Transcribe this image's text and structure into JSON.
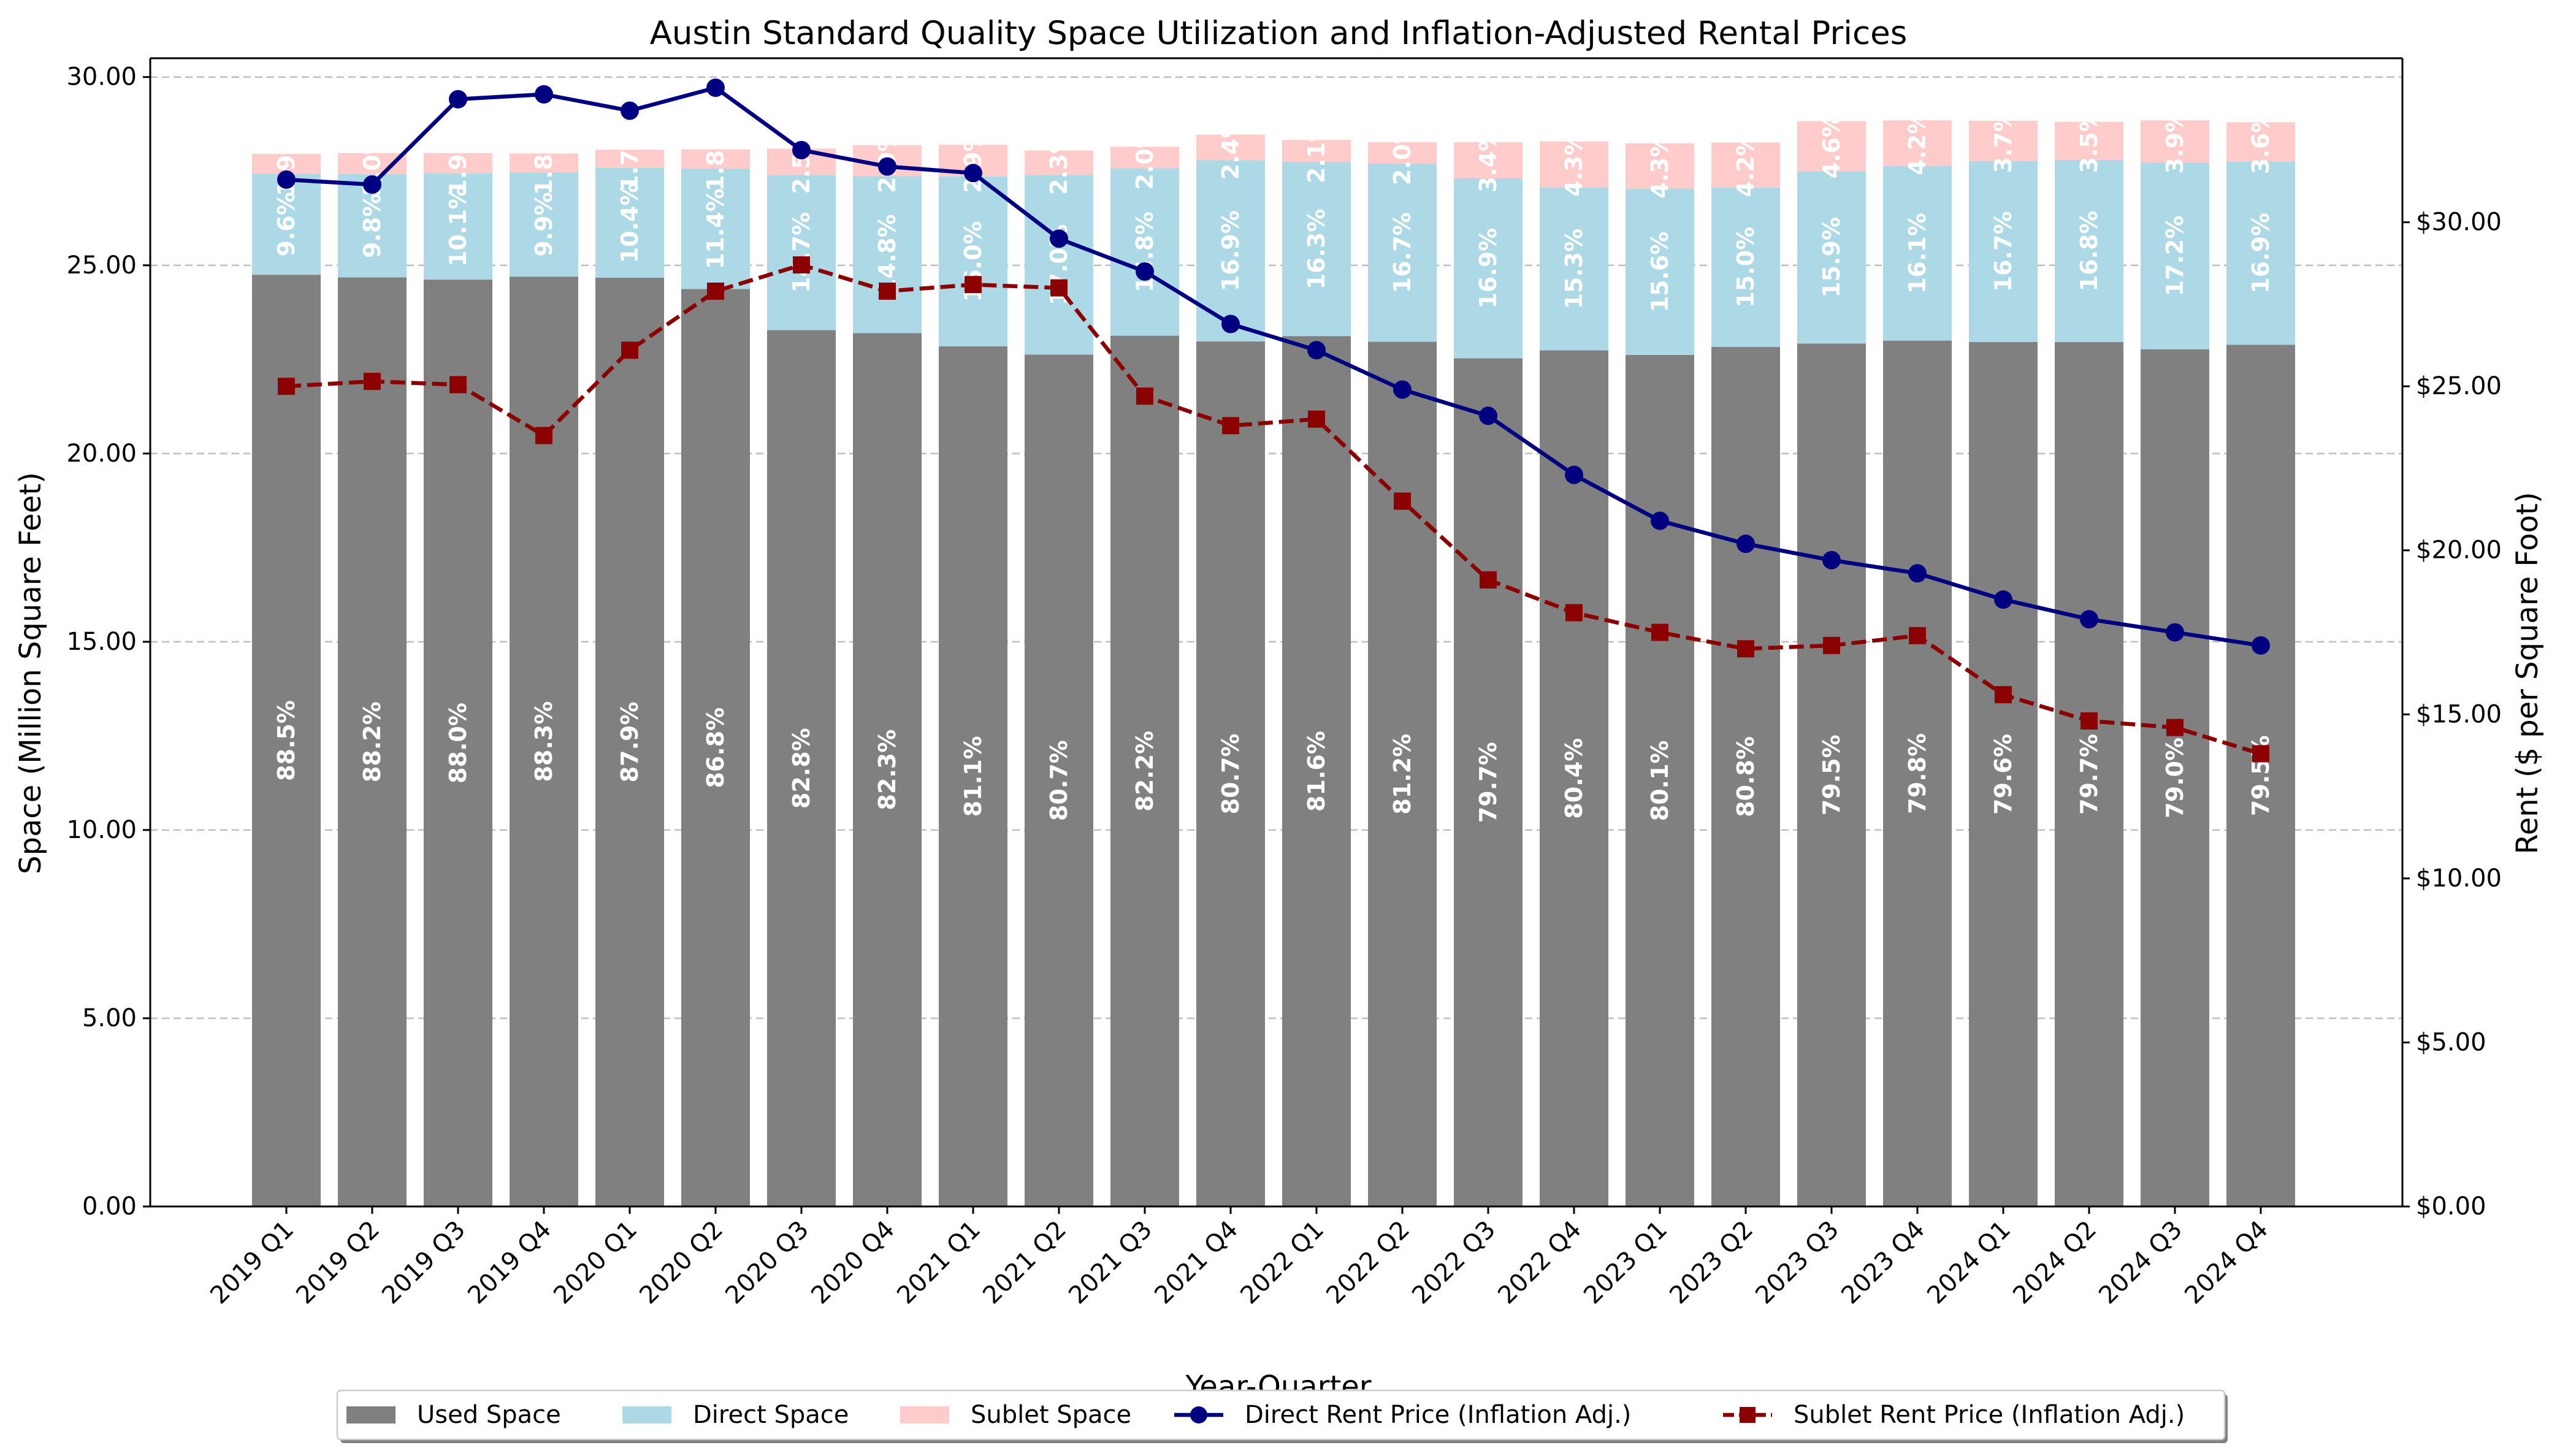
{
  "chart_data": {
    "type": "bar",
    "title": "Austin Standard Quality Space Utilization and Inflation-Adjusted Rental Prices",
    "xlabel": "Year-Quarter",
    "ylabel": "Space (Million Square Feet)",
    "y2label": "Rent ($ per Square Foot)",
    "ylim": [
      0,
      30.5
    ],
    "y2lim": [
      0,
      35.0
    ],
    "yticks": [
      "0.00",
      "5.00",
      "10.00",
      "15.00",
      "20.00",
      "25.00",
      "30.00"
    ],
    "y2ticks": [
      "$0.00",
      "$5.00",
      "$10.00",
      "$15.00",
      "$20.00",
      "$25.00",
      "$30.00"
    ],
    "grid": true,
    "legend_position": "bottom-center",
    "categories": [
      "2019 Q1",
      "2019 Q2",
      "2019 Q3",
      "2019 Q4",
      "2020 Q1",
      "2020 Q2",
      "2020 Q3",
      "2020 Q4",
      "2021 Q1",
      "2021 Q2",
      "2021 Q3",
      "2021 Q4",
      "2022 Q1",
      "2022 Q2",
      "2022 Q3",
      "2022 Q4",
      "2023 Q1",
      "2023 Q2",
      "2023 Q3",
      "2023 Q4",
      "2024 Q1",
      "2024 Q2",
      "2024 Q3",
      "2024 Q4"
    ],
    "series": [
      {
        "name": "Used Space",
        "type": "bar",
        "color": "#808080",
        "values": [
          24.75,
          24.68,
          24.62,
          24.7,
          24.67,
          24.37,
          23.28,
          23.2,
          22.85,
          22.63,
          23.13,
          22.98,
          23.12,
          22.97,
          22.53,
          22.74,
          22.62,
          22.83,
          22.92,
          23.0,
          22.96,
          22.96,
          22.77,
          22.89
        ],
        "labels": [
          "88.5%",
          "88.2%",
          "88.0%",
          "88.3%",
          "87.9%",
          "86.8%",
          "82.8%",
          "82.3%",
          "81.1%",
          "80.7%",
          "82.2%",
          "80.7%",
          "81.6%",
          "81.2%",
          "79.7%",
          "80.4%",
          "80.1%",
          "80.8%",
          "79.5%",
          "79.8%",
          "79.6%",
          "79.7%",
          "79.0%",
          "79.5%"
        ]
      },
      {
        "name": "Direct Space",
        "type": "bar",
        "color": "#add8e6",
        "values": [
          2.68,
          2.74,
          2.83,
          2.77,
          2.92,
          3.2,
          4.12,
          4.17,
          4.51,
          4.77,
          4.45,
          4.81,
          4.62,
          4.73,
          4.78,
          4.33,
          4.41,
          4.24,
          4.58,
          4.64,
          4.81,
          4.84,
          4.96,
          4.87
        ],
        "labels": [
          "9.6%",
          "9.8%",
          "10.1%",
          "9.9%",
          "10.4%",
          "11.4%",
          "14.7%",
          "14.8%",
          "16.0%",
          "17.0%",
          "15.8%",
          "16.9%",
          "16.3%",
          "16.7%",
          "16.9%",
          "15.3%",
          "15.6%",
          "15.0%",
          "15.9%",
          "16.1%",
          "16.7%",
          "16.8%",
          "17.2%",
          "16.9%"
        ]
      },
      {
        "name": "Sublet Space",
        "type": "bar",
        "color": "#ffcccb",
        "values": [
          0.53,
          0.56,
          0.53,
          0.5,
          0.48,
          0.51,
          0.7,
          0.82,
          0.84,
          0.65,
          0.57,
          0.68,
          0.59,
          0.57,
          0.96,
          1.22,
          1.21,
          1.19,
          1.33,
          1.21,
          1.07,
          1.01,
          1.12,
          1.04
        ],
        "labels": [
          "1.9%",
          "2.0%",
          "1.9%",
          "1.8%",
          "1.7%",
          "1.8%",
          "2.5%",
          "2.9%",
          "2.9%",
          "2.3%",
          "2.0%",
          "2.4%",
          "2.1%",
          "2.0%",
          "3.4%",
          "4.3%",
          "4.3%",
          "4.2%",
          "4.6%",
          "4.2%",
          "3.7%",
          "3.5%",
          "3.9%",
          "3.6%"
        ]
      },
      {
        "name": "Direct Rent Price (Inflation Adj.)",
        "type": "line",
        "axis": "right",
        "color": "#000080",
        "values": [
          31.3,
          31.15,
          33.75,
          33.9,
          33.4,
          34.1,
          32.2,
          31.7,
          31.5,
          29.5,
          28.5,
          26.9,
          26.1,
          24.9,
          24.1,
          22.3,
          20.9,
          20.2,
          19.7,
          19.3,
          18.5,
          17.9,
          17.5,
          17.1
        ]
      },
      {
        "name": "Sublet Rent Price (Inflation Adj.)",
        "type": "line",
        "axis": "right",
        "color": "#8b0000",
        "values": [
          25.0,
          25.15,
          25.05,
          23.5,
          26.1,
          27.9,
          28.7,
          27.9,
          28.1,
          28.0,
          24.7,
          23.8,
          24.0,
          21.5,
          19.1,
          18.1,
          17.5,
          17.0,
          17.1,
          17.4,
          15.6,
          14.8,
          14.6,
          13.8
        ]
      }
    ]
  }
}
